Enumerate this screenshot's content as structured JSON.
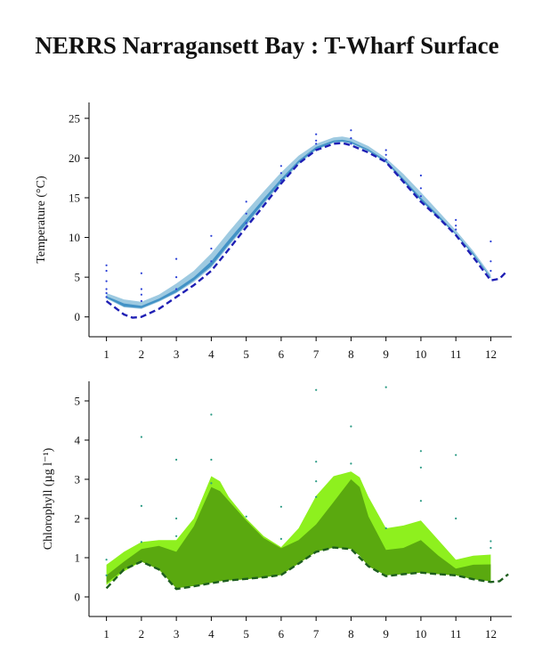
{
  "title": "NERRS Narragansett Bay : T-Wharf Surface",
  "chart_data": [
    {
      "type": "area",
      "ylabel": "Temperature (°C)",
      "xticks": [
        "1",
        "2",
        "3",
        "4",
        "5",
        "6",
        "7",
        "8",
        "9",
        "10",
        "11",
        "12"
      ],
      "yticks": [
        "0",
        "5",
        "10",
        "15",
        "20",
        "25"
      ],
      "xlim": [
        0.5,
        12.6
      ],
      "ylim": [
        -2.5,
        27
      ],
      "colors": {
        "band_outer": "#9ecae1",
        "band_inner": "#4292c6",
        "median_line": "#1f1fb4",
        "points": "#2a3fd6"
      },
      "series": [
        {
          "role": "band_outer",
          "x": [
            1,
            1.5,
            2,
            2.5,
            3,
            3.5,
            4,
            4.5,
            5,
            5.5,
            6,
            6.5,
            7,
            7.5,
            7.75,
            8,
            8.5,
            9,
            9.5,
            10,
            10.5,
            11,
            11.5,
            12
          ],
          "upper": [
            3.0,
            2.2,
            1.9,
            2.8,
            4.2,
            5.8,
            8.0,
            10.7,
            13.3,
            15.8,
            18.2,
            20.3,
            21.8,
            22.6,
            22.7,
            22.5,
            21.5,
            20.0,
            18.0,
            15.7,
            13.3,
            10.9,
            8.3,
            5.3
          ],
          "lower": [
            2.3,
            1.2,
            1.0,
            1.9,
            3.0,
            4.4,
            6.2,
            8.9,
            11.5,
            14.2,
            16.8,
            19.2,
            21.0,
            21.9,
            22.0,
            21.8,
            20.8,
            19.4,
            17.0,
            14.6,
            12.4,
            10.3,
            7.7,
            4.8
          ]
        },
        {
          "role": "band_inner",
          "x": [
            1,
            1.5,
            2,
            2.5,
            3,
            3.5,
            4,
            4.5,
            5,
            5.5,
            6,
            6.5,
            7,
            7.5,
            7.75,
            8,
            8.5,
            9,
            9.5,
            10,
            10.5,
            11,
            11.5,
            12
          ],
          "upper": [
            2.6,
            1.7,
            1.4,
            2.3,
            3.5,
            5.0,
            7.0,
            9.7,
            12.3,
            14.9,
            17.4,
            19.7,
            21.4,
            22.2,
            22.3,
            22.1,
            21.1,
            19.7,
            17.4,
            15.0,
            12.8,
            10.5,
            8.0,
            5.0
          ],
          "lower": [
            2.4,
            1.3,
            1.1,
            2.0,
            3.1,
            4.6,
            6.4,
            9.1,
            11.7,
            14.4,
            17.0,
            19.4,
            21.1,
            22.0,
            22.1,
            21.9,
            20.9,
            19.5,
            17.1,
            14.7,
            12.5,
            10.4,
            7.8,
            4.9
          ]
        },
        {
          "role": "median_line",
          "x": [
            1,
            1.5,
            1.75,
            2,
            2.5,
            3,
            3.5,
            4,
            4.5,
            5,
            5.5,
            6,
            6.5,
            7,
            7.5,
            7.75,
            8,
            8.5,
            9,
            9.5,
            10,
            10.5,
            11,
            11.5,
            12,
            12.25,
            12.45
          ],
          "y": [
            2.0,
            0.3,
            -0.1,
            0.0,
            1.0,
            2.5,
            4.0,
            5.8,
            8.5,
            11.3,
            14.0,
            16.8,
            19.3,
            21.0,
            21.8,
            21.9,
            21.6,
            20.7,
            19.5,
            17.0,
            14.5,
            12.5,
            10.3,
            7.5,
            4.6,
            4.8,
            5.7
          ]
        },
        {
          "role": "points",
          "x": [
            1,
            1,
            1,
            1,
            1,
            1,
            2,
            2,
            2,
            2,
            3,
            3,
            3,
            4,
            4,
            4,
            5,
            5,
            5,
            6,
            6,
            6,
            7,
            7,
            7,
            8,
            8,
            8,
            9,
            9,
            9,
            10,
            10,
            10,
            11,
            11,
            11,
            12,
            12,
            12
          ],
          "y": [
            6.5,
            5.8,
            4.5,
            3.5,
            3.0,
            2.5,
            5.5,
            3.5,
            2.8,
            2.0,
            7.3,
            5.0,
            3.5,
            10.2,
            8.6,
            7.0,
            14.5,
            13.0,
            11.8,
            19.0,
            18.1,
            17.2,
            23.0,
            22.2,
            21.8,
            23.5,
            22.5,
            21.8,
            21.0,
            20.4,
            19.8,
            17.8,
            16.2,
            15.2,
            12.2,
            11.5,
            11.0,
            9.5,
            7.0,
            5.8
          ]
        }
      ]
    },
    {
      "type": "area",
      "ylabel": "Chlorophyll (µg l⁻¹)",
      "xticks": [
        "1",
        "2",
        "3",
        "4",
        "5",
        "6",
        "7",
        "8",
        "9",
        "10",
        "11",
        "12"
      ],
      "yticks": [
        "0",
        "1",
        "2",
        "3",
        "4",
        "5"
      ],
      "xlim": [
        0.5,
        12.6
      ],
      "ylim": [
        -0.5,
        5.5
      ],
      "colors": {
        "band_outer": "#8ef01e",
        "band_inner": "#5aa90f",
        "median_line": "#1e5e1e",
        "points": "#2a9a84"
      },
      "series": [
        {
          "role": "band_outer",
          "x": [
            1,
            1.5,
            2,
            2.5,
            3,
            3.5,
            4,
            4.25,
            4.5,
            5,
            5.5,
            6,
            6.5,
            7,
            7.5,
            8,
            8.25,
            8.5,
            9,
            9.5,
            10,
            10.5,
            11,
            11.5,
            12
          ],
          "upper": [
            0.82,
            1.15,
            1.4,
            1.45,
            1.45,
            2.0,
            3.08,
            2.95,
            2.55,
            2.0,
            1.55,
            1.27,
            1.75,
            2.58,
            3.08,
            3.2,
            3.05,
            2.55,
            1.75,
            1.82,
            1.95,
            1.45,
            0.95,
            1.05,
            1.08
          ],
          "lower": [
            0.3,
            0.65,
            0.9,
            0.7,
            0.22,
            0.28,
            0.36,
            0.4,
            0.42,
            0.45,
            0.5,
            0.56,
            0.85,
            1.15,
            1.26,
            1.22,
            1.05,
            0.78,
            0.55,
            0.58,
            0.62,
            0.58,
            0.55,
            0.45,
            0.4
          ]
        },
        {
          "role": "band_inner",
          "x": [
            1,
            1.5,
            2,
            2.5,
            3,
            3.5,
            4,
            4.25,
            4.5,
            5,
            5.5,
            6,
            6.5,
            7,
            7.5,
            8,
            8.25,
            8.5,
            9,
            9.5,
            10,
            10.5,
            11,
            11.5,
            12
          ],
          "upper": [
            0.55,
            0.9,
            1.22,
            1.3,
            1.15,
            1.8,
            2.8,
            2.7,
            2.45,
            1.95,
            1.5,
            1.24,
            1.45,
            1.85,
            2.42,
            3.0,
            2.8,
            2.05,
            1.2,
            1.25,
            1.45,
            1.05,
            0.72,
            0.82,
            0.83
          ],
          "lower": [
            0.35,
            0.7,
            0.9,
            0.7,
            0.22,
            0.28,
            0.36,
            0.4,
            0.42,
            0.45,
            0.5,
            0.56,
            0.85,
            1.15,
            1.26,
            1.22,
            1.05,
            0.78,
            0.55,
            0.58,
            0.62,
            0.58,
            0.55,
            0.45,
            0.4
          ]
        },
        {
          "role": "median_line",
          "x": [
            1,
            1.5,
            2,
            2.5,
            3,
            3.5,
            4,
            4.5,
            5,
            5.5,
            6,
            6.5,
            7,
            7.5,
            8,
            8.5,
            9,
            9.5,
            10,
            10.5,
            11,
            11.5,
            12,
            12.25,
            12.5
          ],
          "y": [
            0.22,
            0.7,
            0.9,
            0.7,
            0.2,
            0.27,
            0.35,
            0.42,
            0.46,
            0.5,
            0.56,
            0.85,
            1.15,
            1.26,
            1.22,
            0.78,
            0.53,
            0.58,
            0.62,
            0.58,
            0.55,
            0.45,
            0.38,
            0.4,
            0.58
          ]
        },
        {
          "role": "points",
          "x": [
            1,
            1,
            2,
            2,
            2,
            3,
            3,
            3,
            4,
            4,
            4,
            5,
            6,
            6,
            7,
            7,
            7,
            7,
            8,
            8,
            9,
            9,
            10,
            10,
            10,
            11,
            11,
            12,
            12
          ],
          "y": [
            0.95,
            0.55,
            4.08,
            2.32,
            1.4,
            3.5,
            2.0,
            1.55,
            4.65,
            3.5,
            2.9,
            2.05,
            2.3,
            1.48,
            5.28,
            3.45,
            2.95,
            2.55,
            4.35,
            3.4,
            5.35,
            1.75,
            3.72,
            3.3,
            2.45,
            3.62,
            2.0,
            1.42,
            1.25
          ]
        }
      ]
    }
  ]
}
